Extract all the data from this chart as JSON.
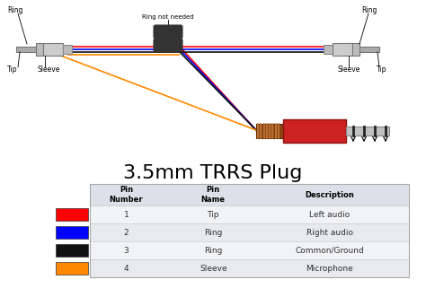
{
  "title": "3.5mm TRRS Plug",
  "title_fontsize": 16,
  "background_color": "#ffffff",
  "table_header": [
    "Pin\nNumber",
    "Pin\nName",
    "Description"
  ],
  "table_rows": [
    [
      "1",
      "Tip",
      "Left audio"
    ],
    [
      "2",
      "Ring",
      "Right audio"
    ],
    [
      "3",
      "Ring",
      "Common/Ground"
    ],
    [
      "4",
      "Sleeve",
      "Microphone"
    ]
  ],
  "row_colors": [
    "#ff0000",
    "#0000ff",
    "#111111",
    "#ff8800"
  ],
  "wire_colors": [
    "#ff0000",
    "#0000ff",
    "#111111",
    "#ff8800"
  ],
  "figsize": [
    4.74,
    3.31
  ],
  "dpi": 100
}
